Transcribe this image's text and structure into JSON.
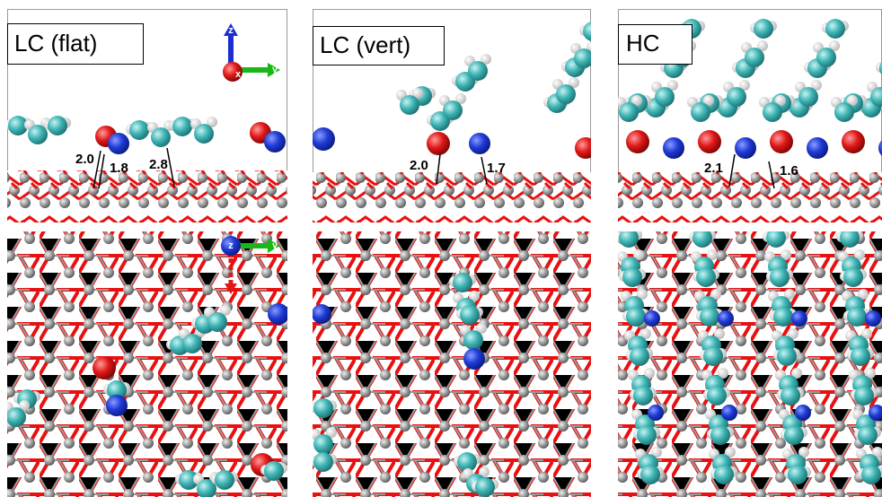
{
  "panels": [
    {
      "title": "LC (flat)",
      "distances": [
        "2.0",
        "1.8",
        "2.8"
      ]
    },
    {
      "title": "LC (vert)",
      "distances": [
        "2.0",
        "1.7"
      ]
    },
    {
      "title": "HC",
      "distances": [
        "2.1",
        "1.6"
      ]
    }
  ],
  "axes_icons": [
    {
      "labels": [
        "z",
        "x",
        "y"
      ]
    },
    {
      "labels": [
        "z",
        "y"
      ]
    }
  ]
}
